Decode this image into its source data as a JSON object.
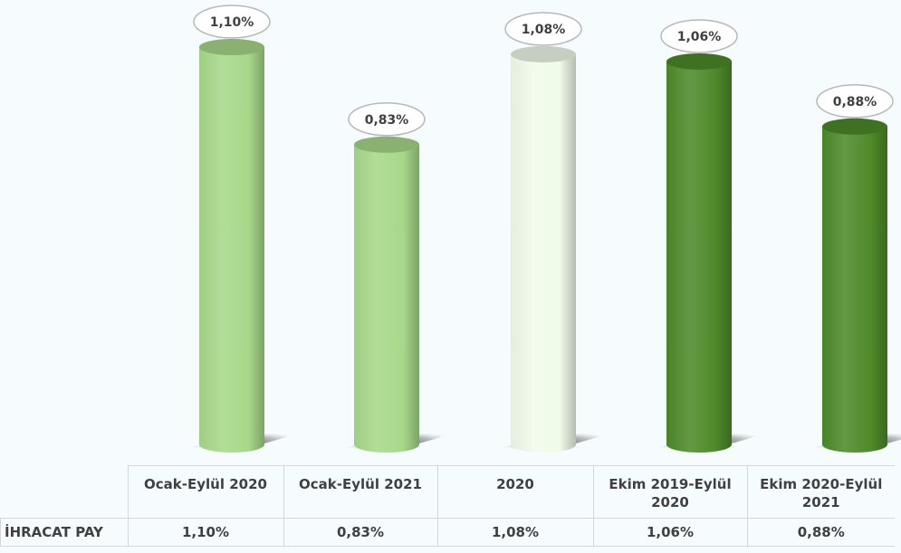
{
  "chart_data": {
    "type": "bar",
    "style": "3d-cylinder",
    "categories": [
      "Ocak-Eylül 2020",
      "Ocak-Eylül 2021",
      "2020",
      "Ekim 2019-Eylül 2020",
      "Ekim 2020-Eylül 2021"
    ],
    "category_display": [
      [
        "Ocak-Eylül 2020"
      ],
      [
        "Ocak-Eylül 2021"
      ],
      [
        "2020"
      ],
      [
        "Ekim 2019-Eylül",
        "2020"
      ],
      [
        "Ekim 2020-Eylül",
        "2021"
      ]
    ],
    "series": [
      {
        "name": "İHRACAT PAY",
        "values": [
          1.1,
          0.83,
          1.08,
          1.06,
          0.88
        ]
      }
    ],
    "data_labels": [
      "1,10%",
      "0,83%",
      "1,08%",
      "1,06%",
      "0,88%"
    ],
    "bar_colors": [
      "#a8d88a",
      "#a8d88a",
      "#f0fbea",
      "#4e8a2a",
      "#4e8a2a"
    ],
    "ylim": [
      0,
      1.1
    ],
    "legend": "data-table-below",
    "grid": false
  },
  "table": {
    "row_label": "İHRACAT PAY",
    "values": [
      "1,10%",
      "0,83%",
      "1,08%",
      "1,06%",
      "0,88%"
    ]
  }
}
